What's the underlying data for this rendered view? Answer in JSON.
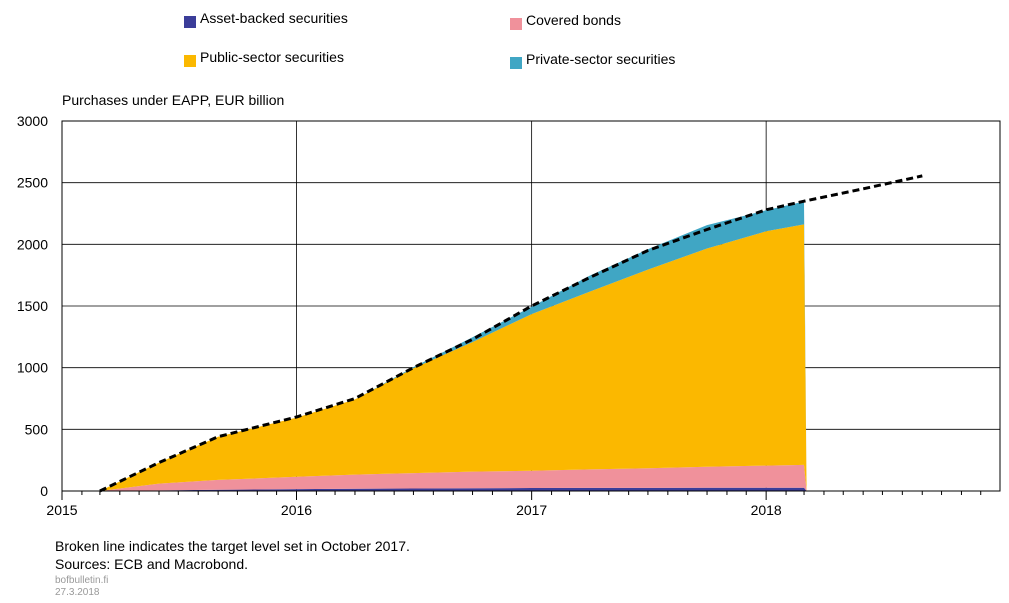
{
  "chart_data": {
    "type": "area",
    "ylabel": "Purchases under EAPP, EUR billion",
    "ylim": [
      0,
      3000
    ],
    "yticks": [
      "0",
      "500",
      "1000",
      "1500",
      "2000",
      "2500",
      "3000"
    ],
    "xlim": [
      "2015-01-01",
      "2018-12-31"
    ],
    "xticks": [
      "2015",
      "2016",
      "2017",
      "2018"
    ],
    "grid": true,
    "legend_position": "top",
    "stacking": "stacked",
    "x": [
      "2015-03-01",
      "2015-06-01",
      "2015-09-01",
      "2016-01-01",
      "2016-04-01",
      "2016-07-01",
      "2016-10-01",
      "2017-01-01",
      "2017-04-01",
      "2017-07-01",
      "2017-10-01",
      "2018-01-01",
      "2018-03-01",
      "2018-03-05"
    ],
    "series": [
      {
        "name": "Asset-backed securities",
        "color": "#3b3d99",
        "values": [
          0,
          5,
          10,
          15,
          18,
          20,
          22,
          24,
          25,
          25,
          26,
          26,
          27,
          0
        ]
      },
      {
        "name": "Covered bonds",
        "color": "#f0919b",
        "values": [
          0,
          55,
          80,
          100,
          115,
          125,
          135,
          140,
          150,
          160,
          170,
          180,
          185,
          0
        ]
      },
      {
        "name": "Public-sector securities",
        "color": "#fbb800",
        "values": [
          0,
          170,
          350,
          480,
          610,
          850,
          1050,
          1270,
          1440,
          1610,
          1770,
          1900,
          1950,
          0
        ]
      },
      {
        "name": "Private-sector securities",
        "color": "#40a6c4",
        "values": [
          0,
          0,
          0,
          0,
          0,
          10,
          40,
          60,
          130,
          165,
          190,
          170,
          185,
          0
        ]
      }
    ],
    "target_line": {
      "style": "dashed",
      "color": "#000000",
      "x": [
        "2015-03-01",
        "2015-06-01",
        "2015-09-01",
        "2016-01-01",
        "2016-04-01",
        "2016-07-01",
        "2016-10-01",
        "2017-01-01",
        "2017-04-01",
        "2017-07-01",
        "2017-10-01",
        "2018-01-01",
        "2018-03-01",
        "2018-06-01",
        "2018-09-01"
      ],
      "values": [
        0,
        230,
        440,
        600,
        750,
        1000,
        1230,
        1500,
        1730,
        1950,
        2120,
        2280,
        2350,
        2450,
        2555
      ]
    }
  },
  "notes": {
    "line1": "Broken line indicates the target level set in October 2017.",
    "line2": "Sources: ECB and Macrobond.",
    "site": "bofbulletin.fi",
    "date": "27.3.2018"
  }
}
